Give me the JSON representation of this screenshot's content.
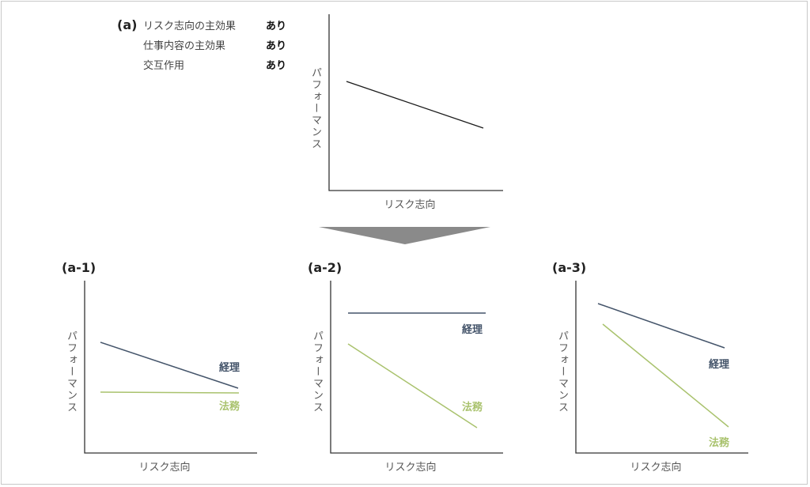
{
  "top": {
    "label": "(a)",
    "effects": [
      {
        "name": "リスク志向の主効果",
        "value": "あり"
      },
      {
        "name": "仕事内容の主効果",
        "value": "あり"
      },
      {
        "name": "交互作用",
        "value": "あり"
      }
    ],
    "ylabel": "パフォーマンス",
    "xlabel": "リスク志向"
  },
  "panels": [
    {
      "label": "(a-1)",
      "ylabel": "パフォーマンス",
      "xlabel": "リスク志向",
      "series_a": "経理",
      "series_b": "法務"
    },
    {
      "label": "(a-2)",
      "ylabel": "パフォーマンス",
      "xlabel": "リスク志向",
      "series_a": "経理",
      "series_b": "法務"
    },
    {
      "label": "(a-3)",
      "ylabel": "パフォーマンス",
      "xlabel": "リスク志向",
      "series_a": "経理",
      "series_b": "法務"
    }
  ],
  "colors": {
    "axis": "#333333",
    "main_line": "#1a1a1a",
    "keiri": "#44546a",
    "houmu": "#a9c26d",
    "arrow": "#8a8a8a"
  }
}
